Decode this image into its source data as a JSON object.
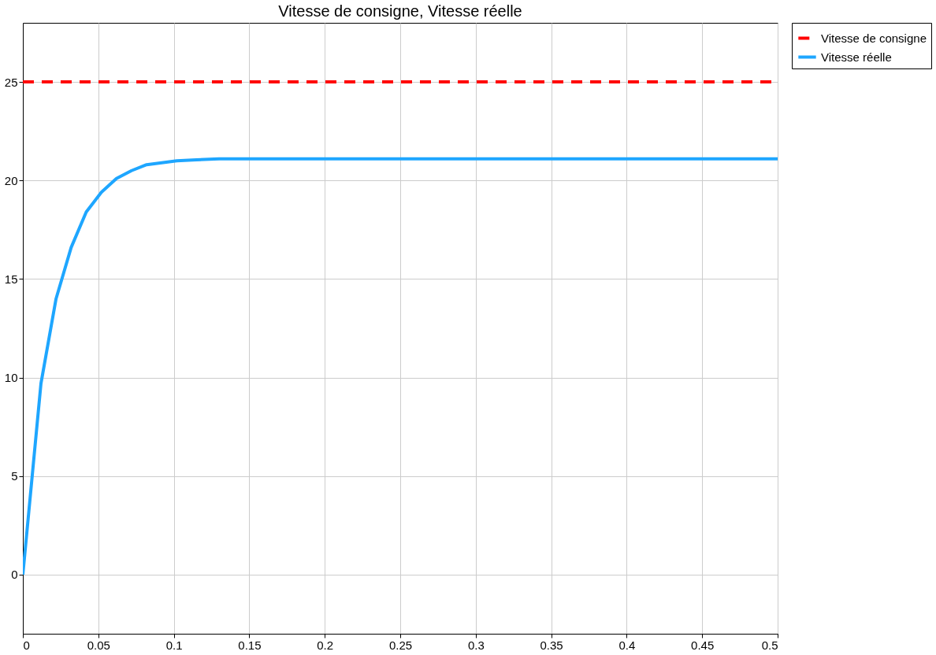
{
  "chart_data": {
    "type": "line",
    "title": "Vitesse de consigne, Vitesse réelle",
    "xlim": [
      0,
      0.5
    ],
    "ylim": [
      -3,
      28
    ],
    "xticks": [
      0,
      0.05,
      0.1,
      0.15,
      0.2,
      0.25,
      0.3,
      0.35,
      0.4,
      0.45,
      0.5
    ],
    "yticks": [
      0,
      5,
      10,
      15,
      20,
      25
    ],
    "grid": true,
    "legend": "right",
    "series": [
      {
        "name": "Vitesse de consigne",
        "color": "#ff0000",
        "line_style": "dashed",
        "x": [
          0,
          0.5
        ],
        "values": [
          25,
          25
        ]
      },
      {
        "name": "Vitesse réelle",
        "color": "#1ea6ff",
        "line_style": "solid",
        "x": [
          0,
          0.012,
          0.022,
          0.032,
          0.042,
          0.052,
          0.062,
          0.072,
          0.082,
          0.092,
          0.102,
          0.115,
          0.13,
          0.15,
          0.2,
          0.3,
          0.4,
          0.5
        ],
        "values": [
          0,
          9.7,
          14.0,
          16.6,
          18.4,
          19.4,
          20.1,
          20.5,
          20.8,
          20.9,
          21.0,
          21.05,
          21.1,
          21.1,
          21.1,
          21.1,
          21.1,
          21.1
        ]
      }
    ]
  }
}
